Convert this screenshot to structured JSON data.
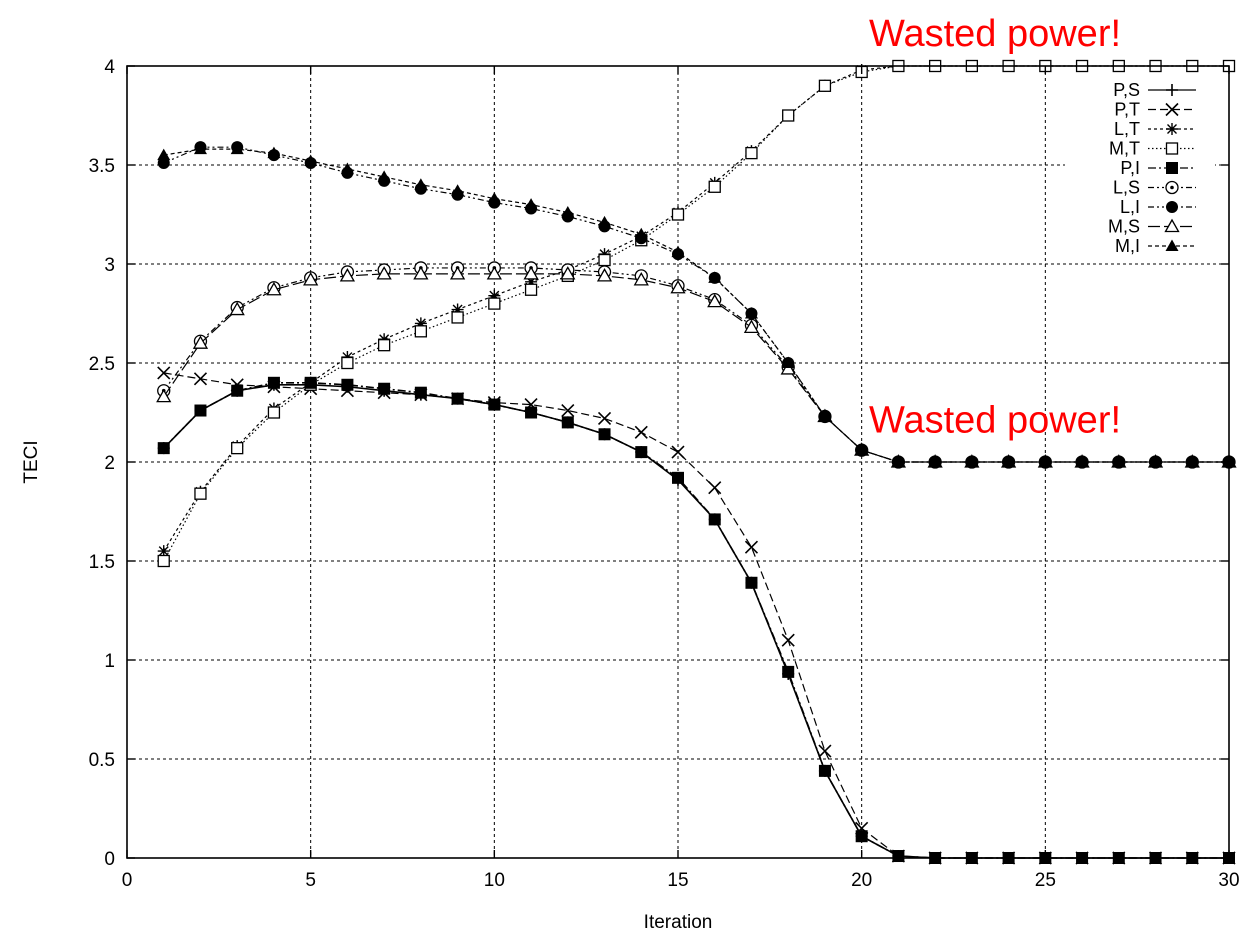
{
  "chart_data": {
    "type": "line",
    "title": "",
    "xlabel": "Iteration",
    "ylabel": "TECI",
    "xlim": [
      0,
      30
    ],
    "ylim": [
      0,
      4
    ],
    "xticks": [
      0,
      5,
      10,
      15,
      20,
      25,
      30
    ],
    "yticks": [
      0,
      0.5,
      1,
      1.5,
      2,
      2.5,
      3,
      3.5,
      4
    ],
    "grid": true,
    "legend_position": "top-right",
    "x": [
      1,
      2,
      3,
      4,
      5,
      6,
      7,
      8,
      9,
      10,
      11,
      12,
      13,
      14,
      15,
      16,
      17,
      18,
      19,
      20,
      21,
      22,
      23,
      24,
      25,
      26,
      27,
      28,
      29,
      30
    ],
    "series": [
      {
        "name": "P,S",
        "marker": "plus",
        "dash": "solid",
        "values": [
          2.07,
          2.26,
          2.36,
          2.39,
          2.39,
          2.38,
          2.36,
          2.34,
          2.32,
          2.29,
          2.25,
          2.2,
          2.14,
          2.05,
          1.91,
          1.71,
          1.39,
          0.93,
          0.44,
          0.11,
          0.01,
          0,
          0,
          0,
          0,
          0,
          0,
          0,
          0,
          0
        ]
      },
      {
        "name": "P,T",
        "marker": "cross",
        "dash": "dashed",
        "values": [
          2.45,
          2.42,
          2.39,
          2.38,
          2.37,
          2.36,
          2.35,
          2.34,
          2.32,
          2.3,
          2.29,
          2.26,
          2.22,
          2.15,
          2.05,
          1.87,
          1.57,
          1.1,
          0.54,
          0.15,
          0.01,
          0,
          0,
          0,
          0,
          0,
          0,
          0,
          0,
          0
        ]
      },
      {
        "name": "L,T",
        "marker": "star",
        "dash": "dotted",
        "values": [
          1.55,
          1.85,
          2.08,
          2.27,
          2.4,
          2.53,
          2.62,
          2.7,
          2.77,
          2.84,
          2.91,
          2.97,
          3.05,
          3.14,
          3.26,
          3.41,
          3.57,
          3.75,
          3.9,
          3.98,
          4,
          4,
          4,
          4,
          4,
          4,
          4,
          4,
          4,
          4
        ]
      },
      {
        "name": "M,T",
        "marker": "square-open",
        "dash": "finedotted",
        "values": [
          1.5,
          1.84,
          2.07,
          2.25,
          2.39,
          2.5,
          2.59,
          2.66,
          2.73,
          2.8,
          2.87,
          2.94,
          3.02,
          3.12,
          3.25,
          3.39,
          3.56,
          3.75,
          3.9,
          3.97,
          4,
          4,
          4,
          4,
          4,
          4,
          4,
          4,
          4,
          4
        ]
      },
      {
        "name": "P,I",
        "marker": "square-filled",
        "dash": "dashdot",
        "values": [
          2.07,
          2.26,
          2.36,
          2.4,
          2.4,
          2.39,
          2.37,
          2.35,
          2.32,
          2.29,
          2.25,
          2.2,
          2.14,
          2.05,
          1.92,
          1.71,
          1.39,
          0.94,
          0.44,
          0.11,
          0.01,
          0,
          0,
          0,
          0,
          0,
          0,
          0,
          0,
          0
        ]
      },
      {
        "name": "L,S",
        "marker": "circle-dot",
        "dash": "dashdotdot",
        "values": [
          2.36,
          2.61,
          2.78,
          2.88,
          2.93,
          2.96,
          2.97,
          2.98,
          2.98,
          2.98,
          2.98,
          2.97,
          2.96,
          2.94,
          2.89,
          2.82,
          2.69,
          2.48,
          2.23,
          2.06,
          2,
          2,
          2,
          2,
          2,
          2,
          2,
          2,
          2,
          2
        ]
      },
      {
        "name": "L,I",
        "marker": "circle-filled",
        "dash": "dashdotdot",
        "values": [
          3.51,
          3.59,
          3.59,
          3.55,
          3.51,
          3.46,
          3.42,
          3.38,
          3.35,
          3.31,
          3.28,
          3.24,
          3.19,
          3.13,
          3.05,
          2.93,
          2.75,
          2.5,
          2.23,
          2.06,
          2,
          2,
          2,
          2,
          2,
          2,
          2,
          2,
          2,
          2
        ]
      },
      {
        "name": "M,S",
        "marker": "triangle-open",
        "dash": "longdash",
        "values": [
          2.33,
          2.6,
          2.77,
          2.87,
          2.92,
          2.94,
          2.95,
          2.95,
          2.95,
          2.95,
          2.95,
          2.95,
          2.94,
          2.92,
          2.88,
          2.81,
          2.68,
          2.47,
          2.23,
          2.06,
          2,
          2,
          2,
          2,
          2,
          2,
          2,
          2,
          2,
          2
        ]
      },
      {
        "name": "M,I",
        "marker": "triangle-filled",
        "dash": "shortdash",
        "values": [
          3.55,
          3.58,
          3.58,
          3.56,
          3.52,
          3.48,
          3.44,
          3.4,
          3.37,
          3.33,
          3.3,
          3.26,
          3.21,
          3.15,
          3.06,
          2.93,
          2.75,
          2.5,
          2.23,
          2.06,
          2,
          2,
          2,
          2,
          2,
          2,
          2,
          2,
          2,
          2
        ]
      }
    ],
    "annotations": [
      {
        "text": "Wasted power!",
        "x": 20.2,
        "y": 4.1
      },
      {
        "text": "Wasted power!",
        "x": 20.2,
        "y": 2.15
      }
    ]
  }
}
